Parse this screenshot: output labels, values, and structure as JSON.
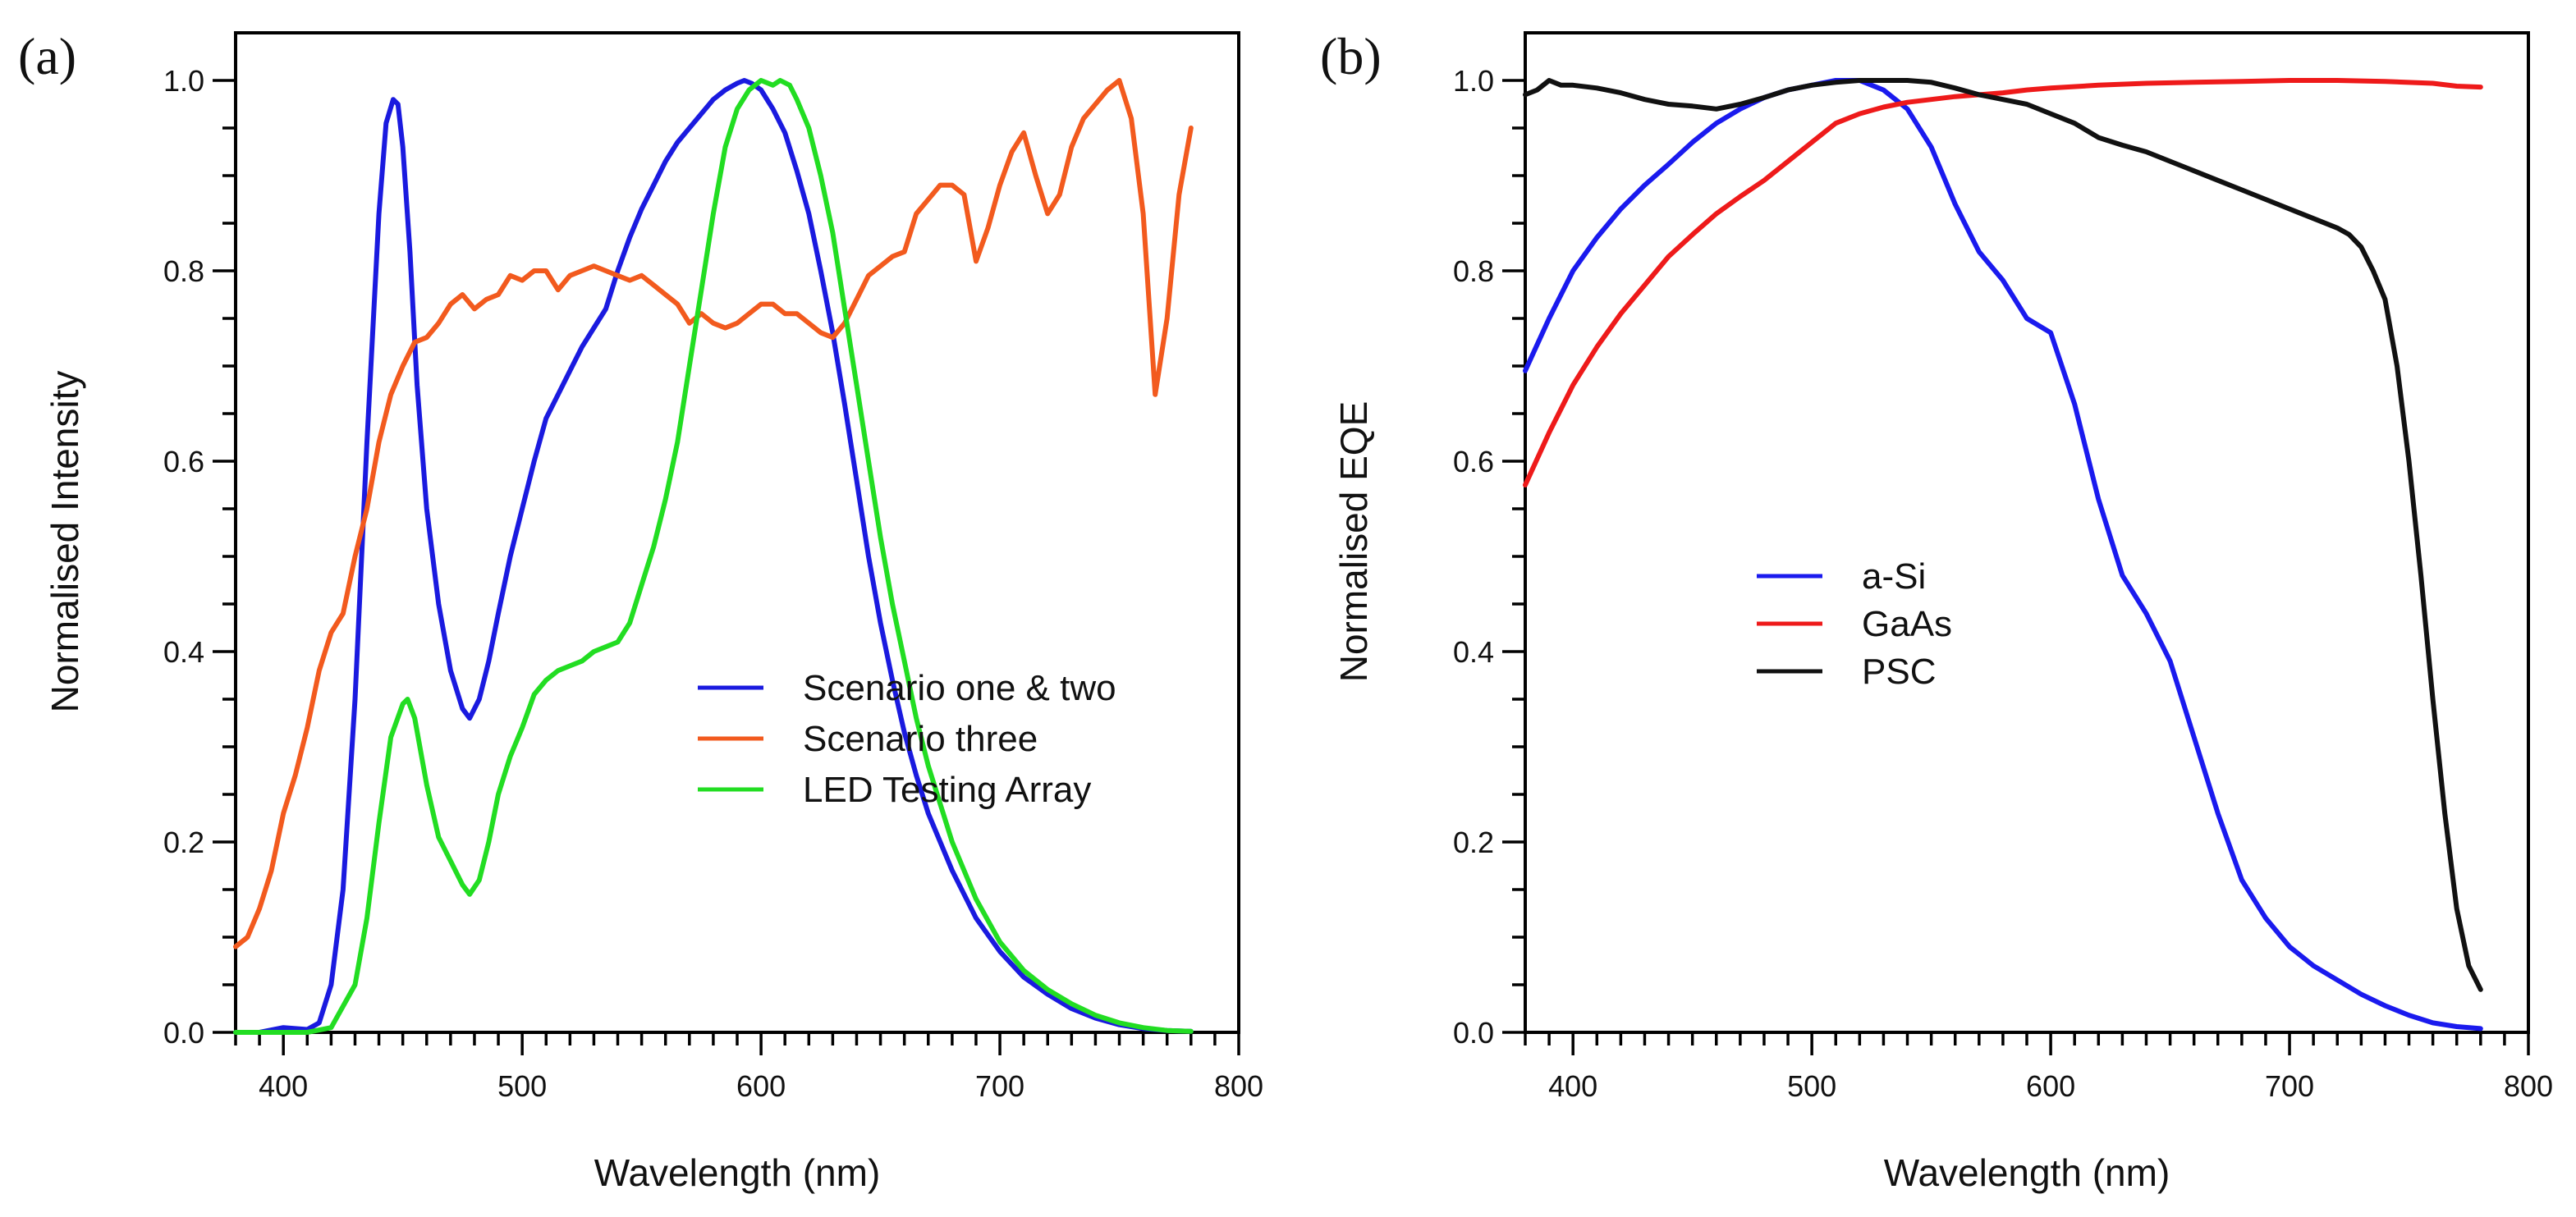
{
  "chart_data": [
    {
      "type": "line",
      "panel_label": "(a)",
      "title": "",
      "xlabel": "Wavelength (nm)",
      "ylabel": "Normalised Intensity",
      "xlim": [
        380,
        800
      ],
      "ylim": [
        0,
        1.05
      ],
      "xticks": [
        400,
        500,
        600,
        700,
        800
      ],
      "yticks": [
        0.0,
        0.2,
        0.4,
        0.6,
        0.8,
        1.0
      ],
      "ytick_labels": [
        "0.0",
        "0.2",
        "0.4",
        "0.6",
        "0.8",
        "1.0"
      ],
      "grid": false,
      "legend_position": "center-right",
      "series": [
        {
          "name": "Scenario one & two",
          "color": "#1a1adf",
          "x": [
            380,
            390,
            400,
            405,
            410,
            415,
            420,
            425,
            430,
            435,
            440,
            443,
            446,
            448,
            450,
            453,
            456,
            460,
            465,
            470,
            475,
            478,
            482,
            486,
            490,
            495,
            500,
            505,
            510,
            515,
            520,
            525,
            530,
            535,
            540,
            545,
            550,
            555,
            560,
            565,
            570,
            575,
            580,
            585,
            590,
            593,
            596,
            600,
            605,
            610,
            615,
            620,
            625,
            630,
            635,
            640,
            645,
            650,
            655,
            660,
            665,
            670,
            680,
            690,
            700,
            710,
            720,
            730,
            740,
            750,
            760,
            770,
            780
          ],
          "y": [
            0.0,
            0.0,
            0.005,
            0.004,
            0.003,
            0.01,
            0.05,
            0.15,
            0.35,
            0.62,
            0.86,
            0.955,
            0.98,
            0.975,
            0.93,
            0.82,
            0.68,
            0.55,
            0.45,
            0.38,
            0.34,
            0.33,
            0.35,
            0.39,
            0.44,
            0.5,
            0.55,
            0.6,
            0.645,
            0.67,
            0.695,
            0.72,
            0.74,
            0.76,
            0.8,
            0.835,
            0.865,
            0.89,
            0.915,
            0.935,
            0.95,
            0.965,
            0.98,
            0.99,
            0.997,
            1.0,
            0.997,
            0.99,
            0.97,
            0.945,
            0.905,
            0.86,
            0.8,
            0.735,
            0.66,
            0.58,
            0.5,
            0.43,
            0.37,
            0.315,
            0.27,
            0.23,
            0.17,
            0.12,
            0.085,
            0.058,
            0.04,
            0.025,
            0.015,
            0.008,
            0.004,
            0.002,
            0.001
          ]
        },
        {
          "name": "Scenario three",
          "color": "#f25a1e",
          "x": [
            380,
            385,
            390,
            395,
            400,
            405,
            410,
            415,
            420,
            425,
            430,
            435,
            440,
            445,
            450,
            455,
            460,
            465,
            470,
            475,
            480,
            485,
            490,
            495,
            500,
            505,
            510,
            515,
            520,
            525,
            530,
            535,
            540,
            545,
            550,
            555,
            560,
            565,
            570,
            575,
            580,
            585,
            590,
            595,
            600,
            605,
            610,
            615,
            620,
            625,
            630,
            635,
            640,
            645,
            650,
            655,
            660,
            665,
            670,
            675,
            680,
            685,
            690,
            695,
            700,
            705,
            710,
            715,
            720,
            725,
            730,
            735,
            740,
            745,
            750,
            755,
            760,
            765,
            770,
            775,
            780
          ],
          "y": [
            0.09,
            0.1,
            0.13,
            0.17,
            0.23,
            0.27,
            0.32,
            0.38,
            0.42,
            0.44,
            0.5,
            0.55,
            0.62,
            0.67,
            0.7,
            0.725,
            0.73,
            0.745,
            0.765,
            0.775,
            0.76,
            0.77,
            0.775,
            0.795,
            0.79,
            0.8,
            0.8,
            0.78,
            0.795,
            0.8,
            0.805,
            0.8,
            0.795,
            0.79,
            0.795,
            0.785,
            0.775,
            0.765,
            0.745,
            0.755,
            0.745,
            0.74,
            0.745,
            0.755,
            0.765,
            0.765,
            0.755,
            0.755,
            0.745,
            0.735,
            0.73,
            0.745,
            0.77,
            0.795,
            0.805,
            0.815,
            0.82,
            0.86,
            0.875,
            0.89,
            0.89,
            0.88,
            0.81,
            0.845,
            0.89,
            0.925,
            0.945,
            0.9,
            0.86,
            0.88,
            0.93,
            0.96,
            0.975,
            0.99,
            1.0,
            0.96,
            0.86,
            0.67,
            0.75,
            0.88,
            0.95
          ]
        },
        {
          "name": "LED Testing Array",
          "color": "#22dd22",
          "x": [
            380,
            390,
            400,
            410,
            420,
            430,
            435,
            440,
            445,
            450,
            452,
            455,
            460,
            465,
            470,
            475,
            478,
            482,
            486,
            490,
            495,
            500,
            505,
            510,
            515,
            520,
            525,
            530,
            535,
            540,
            545,
            550,
            555,
            560,
            565,
            570,
            575,
            580,
            585,
            590,
            595,
            600,
            605,
            608,
            612,
            615,
            620,
            625,
            630,
            635,
            640,
            645,
            650,
            655,
            660,
            665,
            670,
            680,
            690,
            700,
            710,
            720,
            730,
            740,
            750,
            760,
            770,
            780
          ],
          "y": [
            0.0,
            0.0,
            0.0,
            0.0,
            0.005,
            0.05,
            0.12,
            0.22,
            0.31,
            0.345,
            0.35,
            0.33,
            0.26,
            0.205,
            0.18,
            0.155,
            0.145,
            0.16,
            0.2,
            0.25,
            0.29,
            0.32,
            0.355,
            0.37,
            0.38,
            0.385,
            0.39,
            0.4,
            0.405,
            0.41,
            0.43,
            0.47,
            0.51,
            0.56,
            0.62,
            0.7,
            0.78,
            0.86,
            0.93,
            0.97,
            0.99,
            1.0,
            0.995,
            1.0,
            0.995,
            0.98,
            0.95,
            0.9,
            0.84,
            0.76,
            0.68,
            0.6,
            0.52,
            0.45,
            0.39,
            0.33,
            0.28,
            0.2,
            0.14,
            0.095,
            0.065,
            0.045,
            0.03,
            0.018,
            0.01,
            0.005,
            0.002,
            0.001
          ]
        }
      ]
    },
    {
      "type": "line",
      "panel_label": "(b)",
      "title": "",
      "xlabel": "Wavelength (nm)",
      "ylabel": "Normalised EQE",
      "xlim": [
        380,
        800
      ],
      "ylim": [
        0,
        1.05
      ],
      "xticks": [
        400,
        500,
        600,
        700,
        800
      ],
      "yticks": [
        0.0,
        0.2,
        0.4,
        0.6,
        0.8,
        1.0
      ],
      "ytick_labels": [
        "0.0",
        "0.2",
        "0.4",
        "0.6",
        "0.8",
        "1.0"
      ],
      "grid": false,
      "legend_position": "center-left",
      "series": [
        {
          "name": "a-Si",
          "color": "#1a1aee",
          "x": [
            380,
            390,
            400,
            410,
            420,
            430,
            440,
            450,
            460,
            470,
            480,
            490,
            500,
            510,
            520,
            530,
            540,
            550,
            560,
            570,
            580,
            590,
            600,
            610,
            620,
            630,
            640,
            650,
            660,
            670,
            680,
            690,
            700,
            710,
            720,
            730,
            740,
            750,
            760,
            770,
            780
          ],
          "y": [
            0.695,
            0.75,
            0.8,
            0.835,
            0.865,
            0.89,
            0.912,
            0.935,
            0.955,
            0.97,
            0.982,
            0.99,
            0.995,
            1.0,
            1.0,
            0.99,
            0.97,
            0.93,
            0.87,
            0.82,
            0.79,
            0.75,
            0.735,
            0.66,
            0.56,
            0.48,
            0.44,
            0.39,
            0.31,
            0.23,
            0.16,
            0.12,
            0.09,
            0.07,
            0.055,
            0.04,
            0.028,
            0.018,
            0.01,
            0.006,
            0.004
          ]
        },
        {
          "name": "GaAs",
          "color": "#ee1a1a",
          "x": [
            380,
            390,
            400,
            410,
            420,
            430,
            440,
            450,
            460,
            470,
            480,
            490,
            500,
            510,
            520,
            530,
            540,
            550,
            560,
            570,
            580,
            590,
            600,
            620,
            640,
            660,
            680,
            700,
            720,
            740,
            760,
            770,
            780
          ],
          "y": [
            0.575,
            0.63,
            0.68,
            0.72,
            0.755,
            0.785,
            0.815,
            0.838,
            0.86,
            0.878,
            0.895,
            0.915,
            0.935,
            0.955,
            0.965,
            0.972,
            0.977,
            0.98,
            0.983,
            0.985,
            0.987,
            0.99,
            0.992,
            0.995,
            0.997,
            0.998,
            0.999,
            1.0,
            1.0,
            0.999,
            0.997,
            0.994,
            0.993
          ]
        },
        {
          "name": "PSC",
          "color": "#111111",
          "x": [
            380,
            385,
            390,
            395,
            400,
            410,
            420,
            430,
            440,
            450,
            460,
            470,
            480,
            490,
            500,
            510,
            520,
            530,
            540,
            550,
            560,
            570,
            580,
            590,
            600,
            610,
            620,
            630,
            640,
            650,
            660,
            670,
            680,
            690,
            700,
            710,
            720,
            725,
            730,
            735,
            740,
            745,
            750,
            755,
            760,
            765,
            770,
            775,
            780
          ],
          "y": [
            0.985,
            0.99,
            1.0,
            0.995,
            0.995,
            0.992,
            0.987,
            0.98,
            0.975,
            0.973,
            0.97,
            0.975,
            0.982,
            0.99,
            0.995,
            0.998,
            1.0,
            1.0,
            1.0,
            0.998,
            0.992,
            0.985,
            0.98,
            0.975,
            0.965,
            0.955,
            0.94,
            0.932,
            0.925,
            0.915,
            0.905,
            0.895,
            0.885,
            0.875,
            0.865,
            0.855,
            0.845,
            0.838,
            0.825,
            0.8,
            0.77,
            0.7,
            0.6,
            0.48,
            0.35,
            0.23,
            0.13,
            0.07,
            0.045
          ]
        }
      ]
    }
  ]
}
